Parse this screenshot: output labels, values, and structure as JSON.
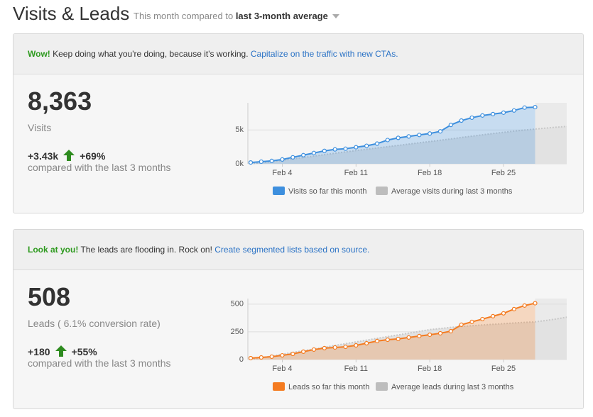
{
  "header": {
    "title": "Visits & Leads",
    "subtitle": "This month compared to",
    "period": "last 3-month average"
  },
  "panels": [
    {
      "banner": {
        "highlight": "Wow!",
        "text": "Keep doing what you're doing, because it's working.",
        "link": "Capitalize on the traffic with new CTAs."
      },
      "metric": {
        "value": "8,363",
        "label": "Visits",
        "change_abs": "+3.43k",
        "change_pct": "+69%",
        "compare": "compared with the last 3 months"
      },
      "chart": {
        "type": "line",
        "x": [
          1,
          2,
          3,
          4,
          5,
          6,
          7,
          8,
          9,
          10,
          11,
          12,
          13,
          14,
          15,
          16,
          17,
          18,
          19,
          20,
          21,
          22,
          23,
          24,
          25,
          26,
          27,
          28,
          29,
          30,
          31
        ],
        "xlim": [
          1,
          31
        ],
        "xticks": [
          {
            "value": 4,
            "label": "Feb 4"
          },
          {
            "value": 11,
            "label": "Feb 11"
          },
          {
            "value": 18,
            "label": "Feb 18"
          },
          {
            "value": 25,
            "label": "Feb 25"
          }
        ],
        "ylim": [
          0,
          9000
        ],
        "yticks": [
          {
            "value": 0,
            "label": "0k"
          },
          {
            "value": 5000,
            "label": "5k"
          }
        ],
        "grid": true,
        "series": [
          {
            "name": "Visits so far this month",
            "color": "#3d8fde",
            "values": [
              200,
              320,
              430,
              640,
              960,
              1280,
              1600,
              1910,
              2130,
              2230,
              2450,
              2660,
              2980,
              3510,
              3830,
              4040,
              4260,
              4470,
              4790,
              5740,
              6380,
              6810,
              7130,
              7340,
              7550,
              7870,
              8300,
              8363,
              null,
              null,
              null
            ]
          },
          {
            "name": "Average visits during last 3 months",
            "color": "#bdbdbd",
            "values": [
              0,
              150,
              330,
              520,
              720,
              930,
              1140,
              1350,
              1560,
              1760,
              1960,
              2150,
              2340,
              2530,
              2720,
              2910,
              3100,
              3290,
              3480,
              3680,
              3880,
              4080,
              4280,
              4470,
              4650,
              4820,
              4980,
              5130,
              5270,
              5400,
              5520
            ]
          }
        ]
      }
    },
    {
      "banner": {
        "highlight": "Look at you!",
        "text": "The leads are flooding in. Rock on!",
        "link": "Create segmented lists based on source."
      },
      "metric": {
        "value": "508",
        "label": "Leads ( 6.1% conversion rate)",
        "change_abs": "+180",
        "change_pct": "+55%",
        "compare": "compared with the last 3 months"
      },
      "chart": {
        "type": "line",
        "x": [
          1,
          2,
          3,
          4,
          5,
          6,
          7,
          8,
          9,
          10,
          11,
          12,
          13,
          14,
          15,
          16,
          17,
          18,
          19,
          20,
          21,
          22,
          23,
          24,
          25,
          26,
          27,
          28,
          29,
          30,
          31
        ],
        "xlim": [
          1,
          31
        ],
        "xticks": [
          {
            "value": 4,
            "label": "Feb 4"
          },
          {
            "value": 11,
            "label": "Feb 11"
          },
          {
            "value": 18,
            "label": "Feb 18"
          },
          {
            "value": 25,
            "label": "Feb 25"
          }
        ],
        "ylim": [
          0,
          550
        ],
        "yticks": [
          0,
          250,
          500
        ],
        "grid": true,
        "series": [
          {
            "name": "Leads so far this month",
            "color": "#f47b20",
            "values": [
              13,
              19,
              26,
              38,
              51,
              71,
              90,
              103,
              109,
              115,
              128,
              147,
              167,
              179,
              186,
              199,
              212,
              224,
              237,
              256,
              314,
              340,
              365,
              391,
              417,
              455,
              487,
              508,
              null,
              null,
              null
            ]
          },
          {
            "name": "Average leads during last 3 months",
            "color": "#bdbdbd",
            "values": [
              0,
              16,
              32,
              48,
              64,
              80,
              95,
              111,
              127,
              143,
              159,
              175,
              191,
              207,
              222,
              238,
              254,
              270,
              280,
              290,
              298,
              305,
              312,
              318,
              324,
              330,
              335,
              340,
              352,
              366,
              382
            ]
          }
        ]
      }
    }
  ]
}
